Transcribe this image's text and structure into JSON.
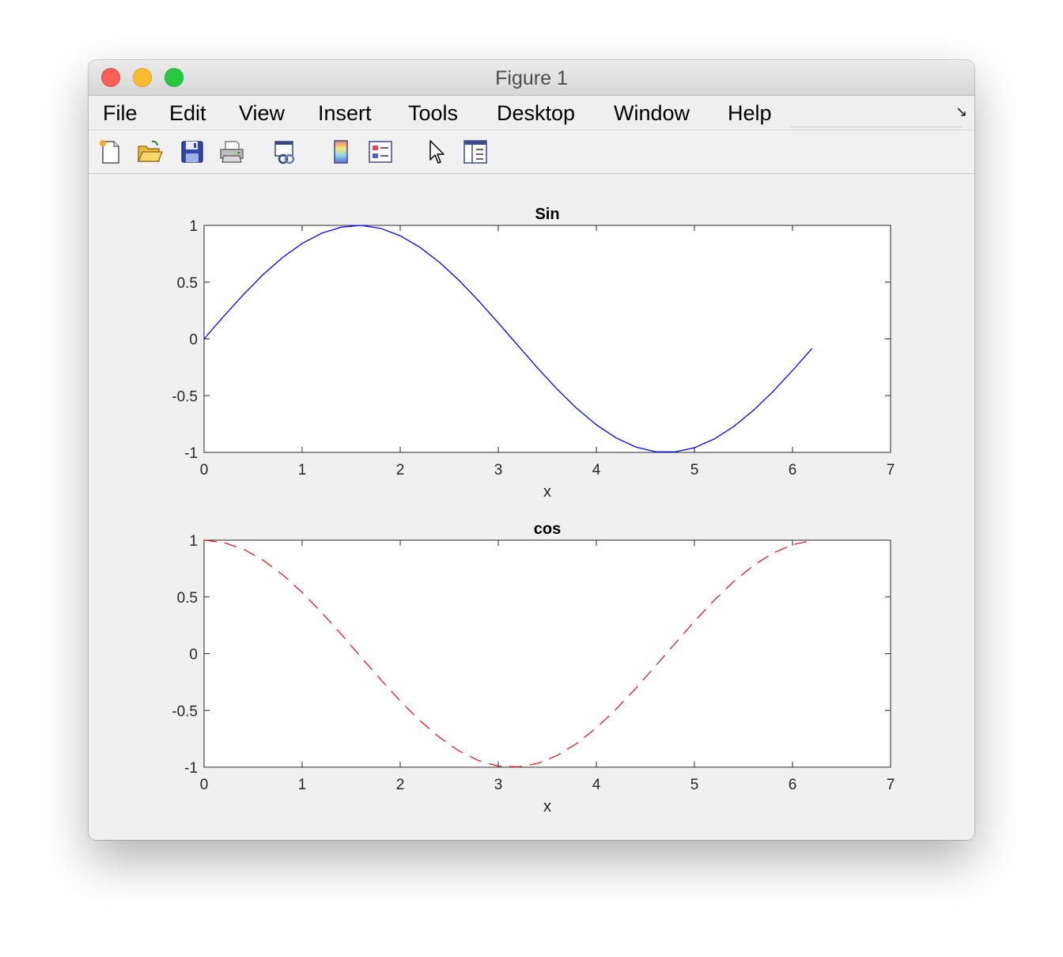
{
  "window": {
    "title": "Figure 1"
  },
  "menu": {
    "items": [
      {
        "label": "File"
      },
      {
        "label": "Edit"
      },
      {
        "label": "View"
      },
      {
        "label": "Insert"
      },
      {
        "label": "Tools"
      },
      {
        "label": "Desktop"
      },
      {
        "label": "Window"
      },
      {
        "label": "Help"
      }
    ],
    "dock_arrow": "↘"
  },
  "toolbar": {
    "icons": [
      "new-figure-icon",
      "open-file-icon",
      "save-icon",
      "print-icon",
      "link-plot-icon",
      "insert-colorbar-icon",
      "insert-legend-icon",
      "edit-plot-pointer-icon",
      "property-inspector-icon"
    ]
  },
  "colors": {
    "sin_line": "#0000ff",
    "cos_line": "#e0191f"
  },
  "chart_data": [
    {
      "type": "line",
      "title": "Sin",
      "xlabel": "x",
      "ylabel": "",
      "xlim": [
        0,
        7
      ],
      "ylim": [
        -1,
        1
      ],
      "xticks": [
        "0",
        "1",
        "2",
        "3",
        "4",
        "5",
        "6",
        "7"
      ],
      "yticks": [
        "1",
        "0.5",
        "0",
        "-0.5",
        "-1"
      ],
      "line_style": "solid",
      "series": [
        {
          "x": [
            0,
            0.2,
            0.4,
            0.6,
            0.8,
            1.0,
            1.2,
            1.4,
            1.6,
            1.8,
            2.0,
            2.2,
            2.4,
            2.6,
            2.8,
            3.0,
            3.2,
            3.4,
            3.6,
            3.8,
            4.0,
            4.2,
            4.4,
            4.6,
            4.8,
            5.0,
            5.2,
            5.4,
            5.6,
            5.8,
            6.0,
            6.2
          ],
          "y": [
            0,
            0.199,
            0.389,
            0.565,
            0.717,
            0.841,
            0.932,
            0.985,
            1.0,
            0.974,
            0.909,
            0.808,
            0.675,
            0.516,
            0.335,
            0.141,
            -0.058,
            -0.256,
            -0.443,
            -0.612,
            -0.757,
            -0.872,
            -0.952,
            -0.994,
            -0.996,
            -0.959,
            -0.883,
            -0.773,
            -0.631,
            -0.465,
            -0.279,
            -0.083
          ]
        }
      ]
    },
    {
      "type": "line",
      "title": "cos",
      "xlabel": "x",
      "ylabel": "",
      "xlim": [
        0,
        7
      ],
      "ylim": [
        -1,
        1
      ],
      "xticks": [
        "0",
        "1",
        "2",
        "3",
        "4",
        "5",
        "6",
        "7"
      ],
      "yticks": [
        "1",
        "0.5",
        "0",
        "-0.5",
        "-1"
      ],
      "line_style": "dashed",
      "series": [
        {
          "x": [
            0,
            0.2,
            0.4,
            0.6,
            0.8,
            1.0,
            1.2,
            1.4,
            1.6,
            1.8,
            2.0,
            2.2,
            2.4,
            2.6,
            2.8,
            3.0,
            3.2,
            3.4,
            3.6,
            3.8,
            4.0,
            4.2,
            4.4,
            4.6,
            4.8,
            5.0,
            5.2,
            5.4,
            5.6,
            5.8,
            6.0,
            6.2
          ],
          "y": [
            1.0,
            0.98,
            0.921,
            0.825,
            0.697,
            0.54,
            0.362,
            0.17,
            -0.029,
            -0.227,
            -0.416,
            -0.589,
            -0.737,
            -0.857,
            -0.942,
            -0.99,
            -0.998,
            -0.967,
            -0.897,
            -0.791,
            -0.654,
            -0.49,
            -0.307,
            -0.112,
            0.087,
            0.284,
            0.469,
            0.635,
            0.776,
            0.886,
            0.96,
            0.997
          ]
        }
      ]
    }
  ]
}
